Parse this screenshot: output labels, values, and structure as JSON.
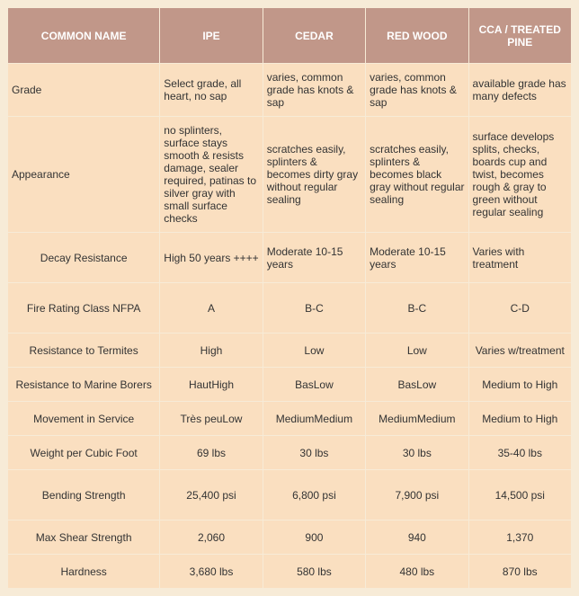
{
  "table": {
    "columns": [
      "COMMON NAME",
      "IPE",
      "CEDAR",
      "RED WOOD",
      "CCA / TREATED PINE"
    ],
    "rows": [
      {
        "label": "Grade",
        "labelCentered": false,
        "dataCentered": false,
        "tall": false,
        "cells": [
          "Select grade, all heart, no sap",
          "varies, common grade has knots & sap",
          "varies, common grade has knots & sap",
          "available grade has many defects"
        ]
      },
      {
        "label": "Appearance",
        "labelCentered": false,
        "dataCentered": false,
        "tall": false,
        "cells": [
          "no splinters, surface stays smooth & resists damage, sealer required, patinas to silver gray with small surface checks",
          "scratches easily, splinters & becomes dirty gray without regular sealing",
          "scratches easily, splinters & becomes black gray without regular sealing",
          "surface develops splits, checks, boards cup and twist, becomes rough & gray to green without regular sealing"
        ]
      },
      {
        "label": "Decay Resistance",
        "labelCentered": true,
        "dataCentered": false,
        "tall": true,
        "cells": [
          "High 50 years ++++",
          "Moderate 10-15 years",
          "Moderate 10-15 years",
          "Varies with treatment"
        ]
      },
      {
        "label": "Fire Rating Class NFPA",
        "labelCentered": true,
        "dataCentered": true,
        "tall": true,
        "cells": [
          "A",
          "B-C",
          "B-C",
          "C-D"
        ]
      },
      {
        "label": "Resistance to Termites",
        "labelCentered": true,
        "dataCentered": true,
        "tall": false,
        "short": true,
        "cells": [
          "High",
          "Low",
          "Low",
          "Varies w/treatment"
        ]
      },
      {
        "label": "Resistance to Marine Borers",
        "labelCentered": true,
        "dataCentered": true,
        "tall": false,
        "short": true,
        "cells": [
          "HautHigh",
          "BasLow",
          "BasLow",
          "Medium to High"
        ]
      },
      {
        "label": "Movement in Service",
        "labelCentered": true,
        "dataCentered": true,
        "tall": false,
        "short": true,
        "cells": [
          "Très peuLow",
          "MediumMedium",
          "MediumMedium",
          "Medium to High"
        ]
      },
      {
        "label": "Weight per Cubic Foot",
        "labelCentered": true,
        "dataCentered": true,
        "tall": false,
        "short": true,
        "cells": [
          "69 lbs",
          "30 lbs",
          "30 lbs",
          "35-40 lbs"
        ]
      },
      {
        "label": "Bending Strength",
        "labelCentered": true,
        "dataCentered": true,
        "tall": true,
        "cells": [
          "25,400 psi",
          "6,800 psi",
          "7,900 psi",
          "14,500 psi"
        ]
      },
      {
        "label": "Max Shear Strength",
        "labelCentered": true,
        "dataCentered": true,
        "tall": false,
        "short": true,
        "cells": [
          "2,060",
          "900",
          "940",
          "1,370"
        ]
      },
      {
        "label": "Hardness",
        "labelCentered": true,
        "dataCentered": true,
        "tall": false,
        "short": true,
        "cells": [
          "3,680 lbs",
          "580 lbs",
          "480 lbs",
          "870 lbs"
        ]
      }
    ],
    "colors": {
      "page_bg": "#f7ebd7",
      "header_bg": "#c19789",
      "header_text": "#ffffff",
      "cell_bg": "#fadfc0",
      "cell_text": "#333333"
    }
  }
}
